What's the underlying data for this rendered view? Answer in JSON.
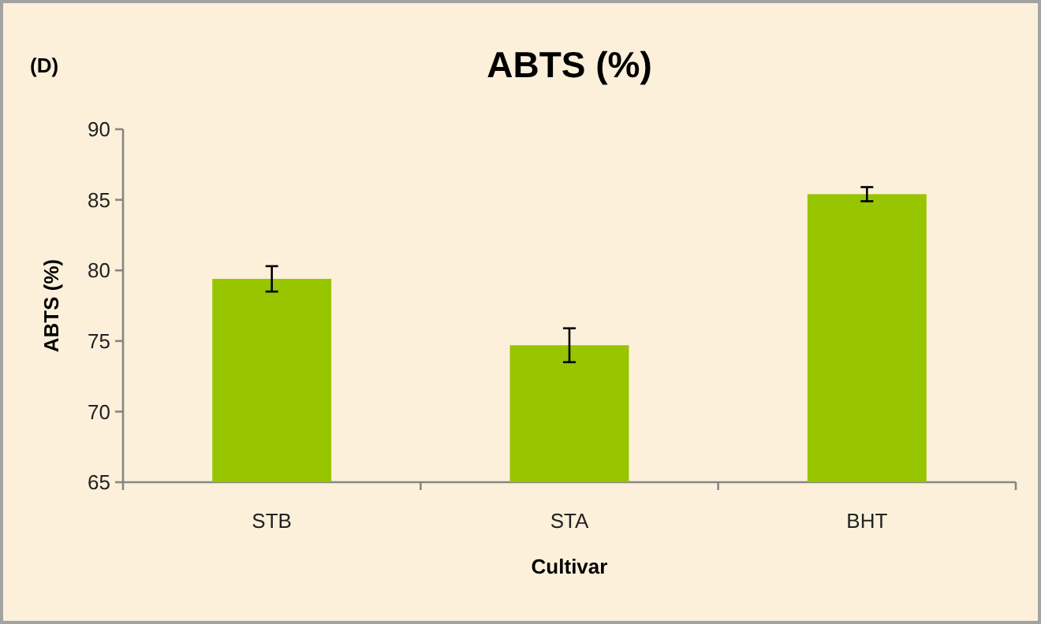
{
  "chart_data": {
    "type": "bar",
    "title": "ABTS (%)",
    "xlabel": "Cultivar",
    "ylabel": "ABTS (%)",
    "categories": [
      "STB",
      "STA",
      "BHT"
    ],
    "values": [
      79.4,
      74.7,
      85.4
    ],
    "errors": [
      0.9,
      1.2,
      0.5
    ],
    "color": "#97c500",
    "ylim": [
      65,
      90
    ],
    "yticks": [
      65,
      70,
      75,
      80,
      85,
      90
    ],
    "annotations": [
      "(D)"
    ]
  }
}
